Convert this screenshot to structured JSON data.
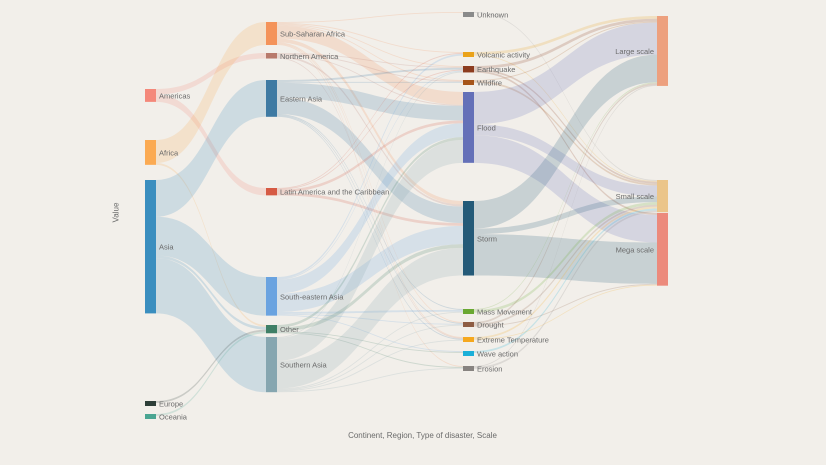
{
  "axes": {
    "y_title": "Value",
    "x_title": "Continent, Region, Type of disaster, Scale"
  },
  "chart_data": {
    "type": "sankey",
    "nodes": [
      {
        "name": "Americas",
        "column": 0,
        "color": "#f4887a"
      },
      {
        "name": "Africa",
        "column": 0,
        "color": "#fbaa52"
      },
      {
        "name": "Asia",
        "column": 0,
        "color": "#3a8ebf"
      },
      {
        "name": "Europe",
        "column": 0,
        "color": "#2d3e38"
      },
      {
        "name": "Oceania",
        "column": 0,
        "color": "#4aa592"
      },
      {
        "name": "Sub-Saharan Africa",
        "column": 1,
        "color": "#f4935a"
      },
      {
        "name": "Northern America",
        "column": 1,
        "color": "#b87a6c"
      },
      {
        "name": "Eastern Asia",
        "column": 1,
        "color": "#3e7aa3"
      },
      {
        "name": "Latin America and the Caribbean",
        "column": 1,
        "color": "#d65a44"
      },
      {
        "name": "South-eastern Asia",
        "column": 1,
        "color": "#6aa3e0"
      },
      {
        "name": "Other",
        "column": 1,
        "color": "#3f7f66"
      },
      {
        "name": "Southern Asia",
        "column": 1,
        "color": "#86a6b0"
      },
      {
        "name": "Unknown",
        "column": 2,
        "color": "#8a8a8a"
      },
      {
        "name": "Volcanic activity",
        "column": 2,
        "color": "#eaa21a"
      },
      {
        "name": "Earthquake",
        "column": 2,
        "color": "#8c3c1f"
      },
      {
        "name": "Wildfire",
        "column": 2,
        "color": "#a6551a"
      },
      {
        "name": "Flood",
        "column": 2,
        "color": "#6470b8"
      },
      {
        "name": "Storm",
        "column": 2,
        "color": "#245a78"
      },
      {
        "name": "Mass Movement",
        "column": 2,
        "color": "#6aa832"
      },
      {
        "name": "Drought",
        "column": 2,
        "color": "#8e5d44"
      },
      {
        "name": "Extreme Temperature",
        "column": 2,
        "color": "#f5a81f"
      },
      {
        "name": "Wave action",
        "column": 2,
        "color": "#1aafd8"
      },
      {
        "name": "Erosion",
        "column": 2,
        "color": "#878380"
      },
      {
        "name": "Large scale",
        "column": 3,
        "color": "#eda07e"
      },
      {
        "name": "Small scale",
        "column": 3,
        "color": "#ebc58a"
      },
      {
        "name": "Mega scale",
        "column": 3,
        "color": "#ec8a7c"
      }
    ],
    "links": [
      [
        "Americas",
        "Northern America",
        6
      ],
      [
        "Americas",
        "Latin America and the Caribbean",
        8
      ],
      [
        "Africa",
        "Sub-Saharan Africa",
        25
      ],
      [
        "Africa",
        "Other",
        2
      ],
      [
        "Asia",
        "Eastern Asia",
        40
      ],
      [
        "Asia",
        "South-eastern Asia",
        42
      ],
      [
        "Asia",
        "Other",
        3
      ],
      [
        "Asia",
        "Southern Asia",
        60
      ],
      [
        "Europe",
        "Other",
        2
      ],
      [
        "Oceania",
        "Other",
        2
      ],
      [
        "Sub-Saharan Africa",
        "Unknown",
        1
      ],
      [
        "Sub-Saharan Africa",
        "Volcanic activity",
        1
      ],
      [
        "Sub-Saharan Africa",
        "Earthquake",
        1
      ],
      [
        "Sub-Saharan Africa",
        "Wildfire",
        1
      ],
      [
        "Sub-Saharan Africa",
        "Flood",
        14
      ],
      [
        "Sub-Saharan Africa",
        "Storm",
        4
      ],
      [
        "Sub-Saharan Africa",
        "Drought",
        1
      ],
      [
        "Sub-Saharan Africa",
        "Extreme Temperature",
        1
      ],
      [
        "Sub-Saharan Africa",
        "Erosion",
        1
      ],
      [
        "Northern America",
        "Earthquake",
        1
      ],
      [
        "Northern America",
        "Wildfire",
        1
      ],
      [
        "Northern America",
        "Flood",
        1
      ],
      [
        "Northern America",
        "Storm",
        2
      ],
      [
        "Northern America",
        "Extreme Temperature",
        1
      ],
      [
        "Eastern Asia",
        "Earthquake",
        2
      ],
      [
        "Eastern Asia",
        "Wildfire",
        1
      ],
      [
        "Eastern Asia",
        "Flood",
        16
      ],
      [
        "Eastern Asia",
        "Storm",
        18
      ],
      [
        "Eastern Asia",
        "Mass Movement",
        1
      ],
      [
        "Eastern Asia",
        "Drought",
        1
      ],
      [
        "Eastern Asia",
        "Extreme Temperature",
        1
      ],
      [
        "Latin America and the Caribbean",
        "Volcanic activity",
        1
      ],
      [
        "Latin America and the Caribbean",
        "Earthquake",
        1
      ],
      [
        "Latin America and the Caribbean",
        "Flood",
        3
      ],
      [
        "Latin America and the Caribbean",
        "Storm",
        3
      ],
      [
        "South-eastern Asia",
        "Volcanic activity",
        2
      ],
      [
        "South-eastern Asia",
        "Earthquake",
        1
      ],
      [
        "South-eastern Asia",
        "Flood",
        15
      ],
      [
        "South-eastern Asia",
        "Storm",
        20
      ],
      [
        "South-eastern Asia",
        "Mass Movement",
        2
      ],
      [
        "South-eastern Asia",
        "Drought",
        1
      ],
      [
        "South-eastern Asia",
        "Wave action",
        1
      ],
      [
        "Other",
        "Flood",
        3
      ],
      [
        "Other",
        "Storm",
        4
      ],
      [
        "Other",
        "Wave action",
        1
      ],
      [
        "Other",
        "Erosion",
        1
      ],
      [
        "Southern Asia",
        "Earthquake",
        1
      ],
      [
        "Southern Asia",
        "Flood",
        25
      ],
      [
        "Southern Asia",
        "Storm",
        30
      ],
      [
        "Southern Asia",
        "Mass Movement",
        1
      ],
      [
        "Southern Asia",
        "Drought",
        1
      ],
      [
        "Southern Asia",
        "Extreme Temperature",
        1
      ],
      [
        "Southern Asia",
        "Erosion",
        1
      ],
      [
        "Unknown",
        "Small scale",
        1
      ],
      [
        "Volcanic activity",
        "Large scale",
        3
      ],
      [
        "Volcanic activity",
        "Small scale",
        1
      ],
      [
        "Earthquake",
        "Large scale",
        3
      ],
      [
        "Earthquake",
        "Small scale",
        2
      ],
      [
        "Earthquake",
        "Mega scale",
        2
      ],
      [
        "Wildfire",
        "Large scale",
        1
      ],
      [
        "Wildfire",
        "Small scale",
        2
      ],
      [
        "Flood",
        "Large scale",
        35
      ],
      [
        "Flood",
        "Small scale",
        12
      ],
      [
        "Flood",
        "Mega scale",
        30
      ],
      [
        "Storm",
        "Large scale",
        30
      ],
      [
        "Storm",
        "Small scale",
        6
      ],
      [
        "Storm",
        "Mega scale",
        45
      ],
      [
        "Mass Movement",
        "Large scale",
        1
      ],
      [
        "Mass Movement",
        "Small scale",
        3
      ],
      [
        "Drought",
        "Large scale",
        2
      ],
      [
        "Drought",
        "Small scale",
        2
      ],
      [
        "Drought",
        "Mega scale",
        1
      ],
      [
        "Extreme Temperature",
        "Small scale",
        2
      ],
      [
        "Extreme Temperature",
        "Mega scale",
        1
      ],
      [
        "Wave action",
        "Small scale",
        2
      ],
      [
        "Erosion",
        "Large scale",
        1
      ],
      [
        "Erosion",
        "Small scale",
        2
      ]
    ]
  }
}
